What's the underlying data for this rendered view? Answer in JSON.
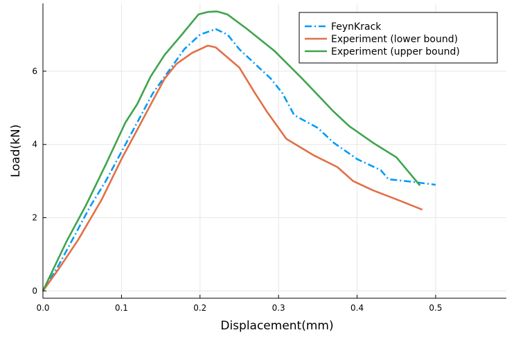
{
  "chart_data": {
    "type": "line",
    "title": "",
    "xlabel": "Displacement(mm)",
    "ylabel": "Load(kN)",
    "xlim": [
      0,
      0.59
    ],
    "ylim": [
      -0.2,
      7.85
    ],
    "xticks": [
      0.0,
      0.1,
      0.2,
      0.3,
      0.4,
      0.5
    ],
    "xtick_labels": [
      "0.0",
      "0.1",
      "0.2",
      "0.3",
      "0.4",
      "0.5"
    ],
    "yticks": [
      0,
      2,
      4,
      6
    ],
    "ytick_labels": [
      "0",
      "2",
      "4",
      "6"
    ],
    "grid": true,
    "legend_position": "top-right",
    "series": [
      {
        "name": "FeynKrack",
        "color": "#009af9",
        "style": "dashdot",
        "x": [
          0.0,
          0.02,
          0.04,
          0.06,
          0.08,
          0.1,
          0.12,
          0.14,
          0.16,
          0.18,
          0.2,
          0.22,
          0.235,
          0.25,
          0.27,
          0.29,
          0.305,
          0.32,
          0.35,
          0.37,
          0.4,
          0.43,
          0.44,
          0.47,
          0.5
        ],
        "y": [
          0.0,
          0.7,
          1.5,
          2.3,
          3.0,
          3.8,
          4.6,
          5.4,
          6.0,
          6.6,
          7.0,
          7.15,
          7.0,
          6.6,
          6.2,
          5.8,
          5.4,
          4.8,
          4.45,
          4.05,
          3.6,
          3.3,
          3.05,
          2.98,
          2.9
        ]
      },
      {
        "name": "Experiment (lower bound)",
        "color": "#e26f46",
        "style": "solid",
        "x": [
          0.0,
          0.02,
          0.045,
          0.075,
          0.1,
          0.12,
          0.14,
          0.155,
          0.17,
          0.19,
          0.21,
          0.22,
          0.25,
          0.27,
          0.285,
          0.31,
          0.345,
          0.375,
          0.395,
          0.42,
          0.45,
          0.483
        ],
        "y": [
          0.0,
          0.6,
          1.4,
          2.5,
          3.6,
          4.4,
          5.2,
          5.8,
          6.2,
          6.5,
          6.7,
          6.65,
          6.1,
          5.4,
          4.9,
          4.15,
          3.7,
          3.38,
          3.0,
          2.75,
          2.5,
          2.22
        ]
      },
      {
        "name": "Experiment (upper bound)",
        "color": "#3da44d",
        "style": "solid",
        "x": [
          0.0,
          0.03,
          0.055,
          0.08,
          0.105,
          0.12,
          0.137,
          0.155,
          0.175,
          0.198,
          0.21,
          0.222,
          0.235,
          0.26,
          0.295,
          0.33,
          0.37,
          0.39,
          0.42,
          0.45,
          0.48
        ],
        "y": [
          0.0,
          1.35,
          2.35,
          3.45,
          4.6,
          5.1,
          5.85,
          6.45,
          6.95,
          7.55,
          7.62,
          7.63,
          7.55,
          7.15,
          6.55,
          5.8,
          4.9,
          4.5,
          4.05,
          3.65,
          2.88
        ]
      }
    ]
  }
}
